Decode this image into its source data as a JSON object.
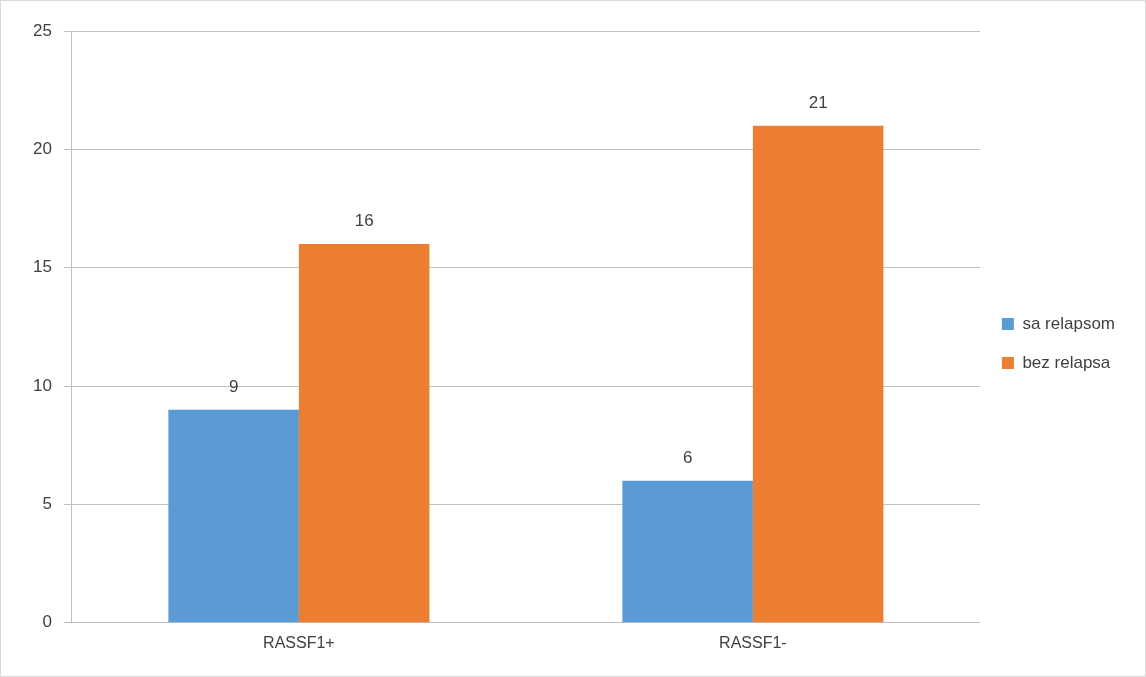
{
  "chart_data": {
    "type": "bar",
    "categories": [
      "RASSF1+",
      "RASSF1-"
    ],
    "series": [
      {
        "name": "sa relapsom",
        "color": "#5b9bd5",
        "values": [
          9,
          6
        ]
      },
      {
        "name": "bez relapsa",
        "color": "#ed7d31",
        "values": [
          16,
          21
        ]
      }
    ],
    "ylim": [
      0,
      25
    ],
    "yticks": [
      0,
      5,
      10,
      15,
      20,
      25
    ],
    "grid": "y",
    "legend": "right",
    "data_labels": true
  }
}
